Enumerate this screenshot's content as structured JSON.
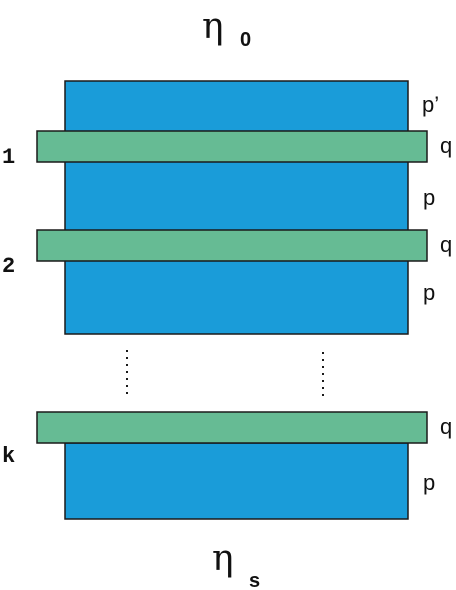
{
  "top_label": {
    "symbol": "η",
    "subscript": "0"
  },
  "bottom_label": {
    "symbol": "η",
    "subscript": "s"
  },
  "layer_labels": {
    "p_prime": "p’",
    "q": "q",
    "p": "p"
  },
  "stack_labels": [
    "1",
    "2",
    "k"
  ],
  "colors": {
    "substrate_layer": "#1a9cd9",
    "thin_layer": "#66bb94",
    "outline": "#1a1a1a"
  }
}
